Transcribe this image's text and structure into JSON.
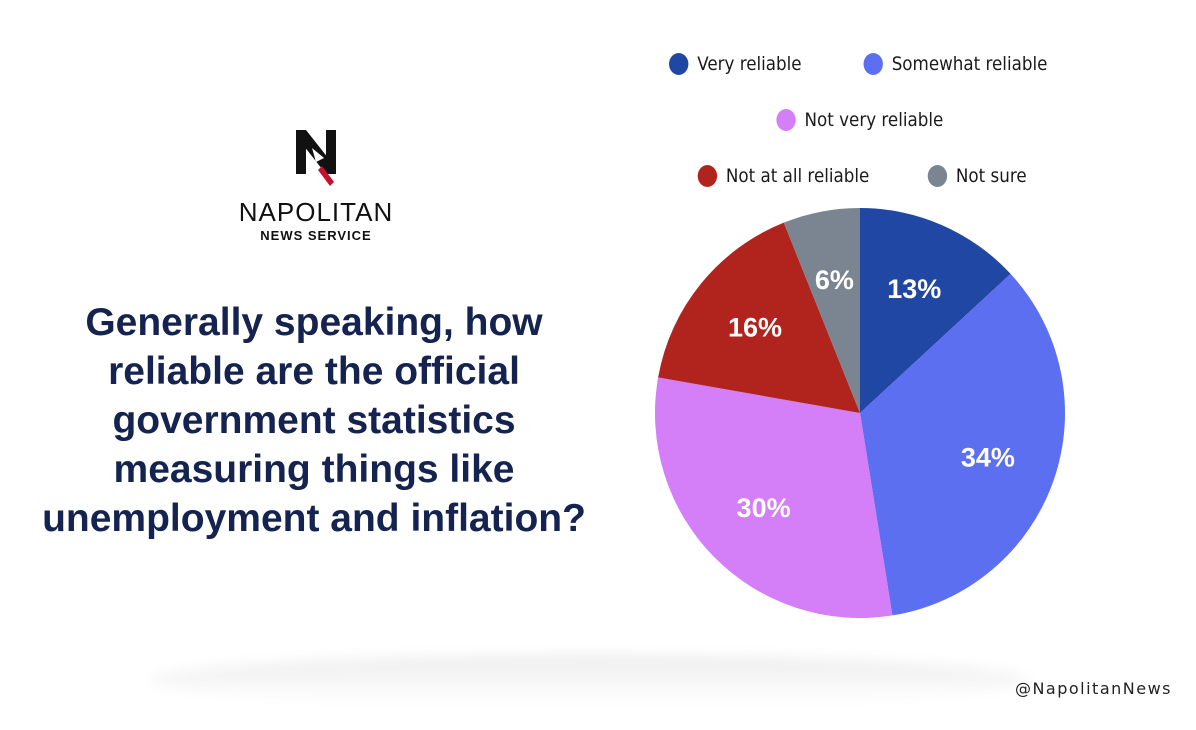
{
  "logo": {
    "name": "NAPOLITAN",
    "subtitle": "NEWS SERVICE"
  },
  "question": "Generally speaking, how reliable are the official government statistics measuring things like unemployment and inflation?",
  "handle": "@NapolitanNews",
  "colors": {
    "very_reliable": "#1f47a3",
    "somewhat_reliable": "#5b6ff0",
    "not_very_reliable": "#d47ef7",
    "not_at_all_reliable": "#b1241d",
    "not_sure": "#7b8491",
    "question_text": "#14234f"
  },
  "chart_data": {
    "type": "pie",
    "title": "",
    "legend_placement": "top",
    "categories": [
      "Very reliable",
      "Somewhat reliable",
      "Not very reliable",
      "Not at all reliable",
      "Not sure"
    ],
    "values": [
      13,
      34,
      30,
      16,
      6
    ],
    "labels": [
      "13%",
      "34%",
      "30%",
      "16%",
      "6%"
    ],
    "colors": [
      "#1f47a3",
      "#5b6ff0",
      "#d47ef7",
      "#b1241d",
      "#7b8491"
    ],
    "start_angle": "12 o'clock",
    "direction": "clockwise"
  }
}
